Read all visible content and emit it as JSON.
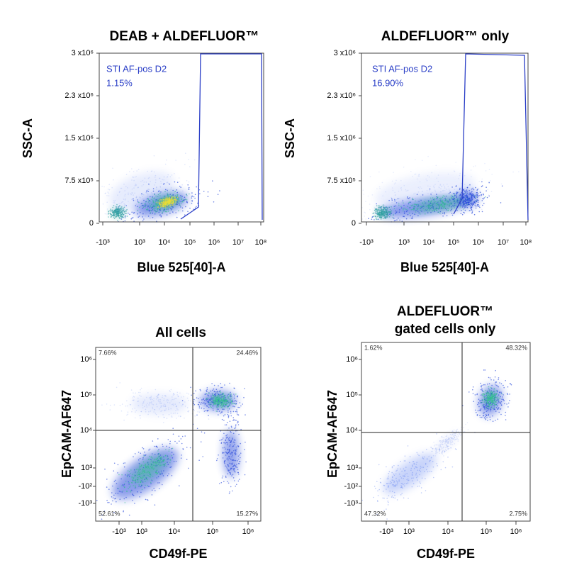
{
  "panels": [
    {
      "title": [
        "DEAB + ALDEFLUOR™"
      ],
      "y_label": "SSC-A",
      "x_label": "Blue 525[40]-A",
      "y_ticks": [
        "3 x10⁶",
        "2.3 x10⁶",
        "1.5 x10⁶",
        "7.5 x10⁵",
        "0"
      ],
      "x_ticks": [
        "-10³",
        "10³",
        "10⁴",
        "10⁵",
        "10⁶",
        "10⁷",
        "10⁸"
      ],
      "gate": {
        "name": "STI AF-pos D2",
        "percent": "1.15%"
      }
    },
    {
      "title": [
        "ALDEFLUOR™ only"
      ],
      "y_label": "SSC-A",
      "x_label": "Blue 525[40]-A",
      "y_ticks": [
        "3 x10⁶",
        "2.3 x10⁶",
        "1.5 x10⁶",
        "7.5 x10⁵",
        "0"
      ],
      "x_ticks": [
        "-10³",
        "10³",
        "10⁴",
        "10⁵",
        "10⁶",
        "10⁷",
        "10⁸"
      ],
      "gate": {
        "name": "STI AF-pos D2",
        "percent": "16.90%"
      }
    },
    {
      "title": [
        "All cells"
      ],
      "y_label": "EpCAM-AF647",
      "x_label": "CD49f-PE",
      "y_ticks": [
        "10⁶",
        "10⁵",
        "10⁴",
        "10³",
        "-10²",
        "-10³"
      ],
      "x_ticks": [
        "-10³",
        "10³",
        "10⁴",
        "10⁵",
        "10⁶"
      ],
      "quadrants": [
        "7.66%",
        "24.46%",
        "52.61%",
        "15.27%"
      ]
    },
    {
      "title": [
        "ALDEFLUOR™",
        "gated cells only"
      ],
      "y_label": "EpCAM-AF647",
      "x_label": "CD49f-PE",
      "y_ticks": [
        "10⁶",
        "10⁵",
        "10⁴",
        "10³",
        "-10²",
        "-10³"
      ],
      "x_ticks": [
        "-10³",
        "10³",
        "10⁴",
        "10⁵",
        "10⁶"
      ],
      "quadrants": [
        "1.62%",
        "48.32%",
        "47.32%",
        "2.75%"
      ]
    }
  ]
}
